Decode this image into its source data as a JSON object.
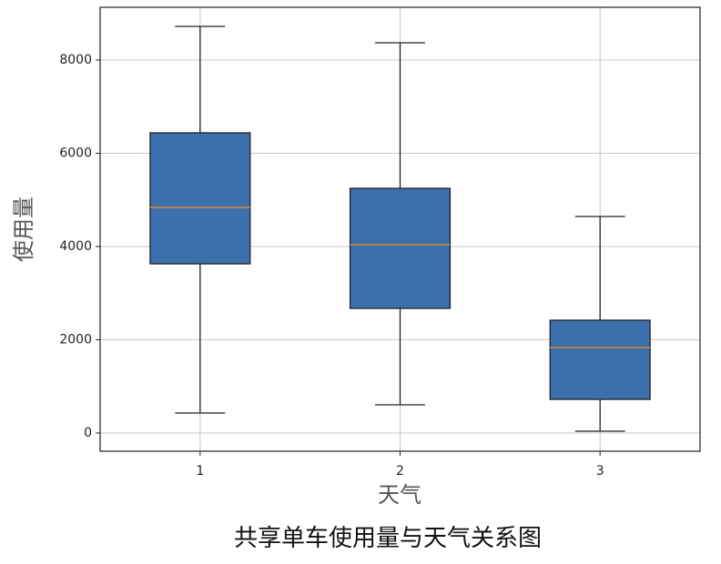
{
  "chart_data": {
    "type": "box",
    "title": "共享单车使用量与天气关系图",
    "x_label": "天气",
    "y_label": "使用量",
    "categories": [
      "1",
      "2",
      "3"
    ],
    "boxes": [
      {
        "whislo": 429,
        "q1": 3629,
        "med": 4839,
        "q3": 6439,
        "whishi": 8722
      },
      {
        "whislo": 605,
        "q1": 2673,
        "med": 4039,
        "q3": 5249,
        "whishi": 8371
      },
      {
        "whislo": 39,
        "q1": 722,
        "med": 1834,
        "q3": 2420,
        "whishi": 4644
      }
    ],
    "color": "#3b70ad",
    "median_color": "#e08a30",
    "ylim": [
      -390,
      9132
    ],
    "yticks": [
      0,
      2000,
      4000,
      6000,
      8000
    ],
    "grid": true
  }
}
